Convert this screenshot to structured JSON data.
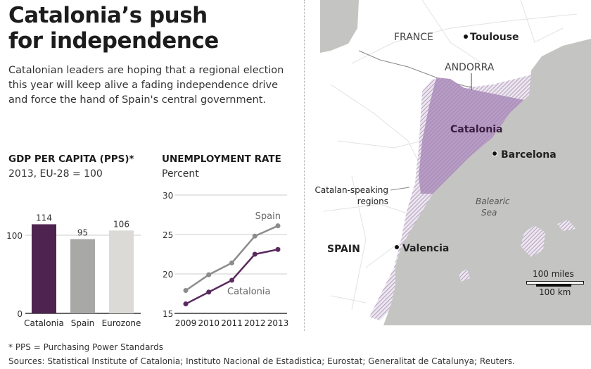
{
  "header": {
    "title_line1": "Catalonia’s push",
    "title_line2": "for independence",
    "subtitle": "Catalonian leaders are hoping that a regional election this year will keep alive a fading independence drive and force the hand of Spain's central government."
  },
  "chart_data": [
    {
      "type": "bar",
      "title": "GDP PER CAPITA (PPS)*",
      "subtitle": "2013, EU-28 = 100",
      "categories": [
        "Catalonia",
        "Spain",
        "Eurozone"
      ],
      "values": [
        114,
        95,
        106
      ],
      "yticks": [
        0,
        100
      ],
      "ylim": [
        0,
        130
      ],
      "grid": true,
      "colors": [
        "#4f2350",
        "#a8a8a6",
        "#dcdad6"
      ]
    },
    {
      "type": "line",
      "title": "UNEMPLOYMENT RATE",
      "subtitle": "Percent",
      "x": [
        2009,
        2010,
        2011,
        2012,
        2013
      ],
      "xticks": [
        "2009",
        "2010",
        "2011",
        "2012",
        "2013"
      ],
      "yticks": [
        15,
        20,
        25,
        30
      ],
      "ylim": [
        15,
        30
      ],
      "grid": true,
      "series": [
        {
          "name": "Spain",
          "values": [
            17.9,
            19.9,
            21.4,
            24.8,
            26.1
          ],
          "color": "#8c8c8c"
        },
        {
          "name": "Catalonia",
          "values": [
            16.2,
            17.7,
            19.2,
            22.5,
            23.1
          ],
          "color": "#5a2a5e"
        }
      ]
    }
  ],
  "map": {
    "labels": {
      "france": "FRANCE",
      "toulouse": "Toulouse",
      "andorra": "ANDORRA",
      "catalonia": "Catalonia",
      "barcelona": "Barcelona",
      "catalan_line1": "Catalan-speaking",
      "catalan_line2": "regions",
      "sea_line1": "Balearic",
      "sea_line2": "Sea",
      "spain": "SPAIN",
      "valencia": "Valencia",
      "scale_miles": "100 miles",
      "scale_km": "100 km"
    },
    "colors": {
      "sea": "#c4c4c2",
      "land": "#ffffff",
      "catalonia": "#b79cc4",
      "hatch": "#a58db2"
    }
  },
  "footer": {
    "note": "* PPS = Purchasing Power Standards",
    "sources": "Sources: Statistical Institute of Catalonia; Instituto Nacional de Estadistica; Eurostat; Generalitat de Catalunya; Reuters."
  }
}
